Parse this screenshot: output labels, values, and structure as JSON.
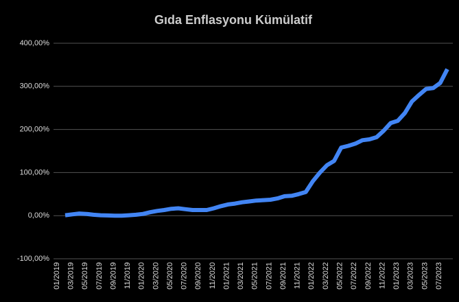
{
  "chart_data": {
    "type": "line",
    "title": "Gıda Enflasyonu Kümülatif",
    "categories": [
      "01/2019",
      null,
      "03/2019",
      null,
      "05/2019",
      null,
      "07/2019",
      null,
      "09/2019",
      null,
      "11/2019",
      null,
      "01/2020",
      null,
      "03/2020",
      null,
      "05/2020",
      null,
      "07/2020",
      null,
      "09/2020",
      null,
      "11/2020",
      null,
      "01/2021",
      null,
      "03/2021",
      null,
      "05/2021",
      null,
      "07/2021",
      null,
      "09/2021",
      null,
      "11/2021",
      null,
      "01/2022",
      null,
      "03/2022",
      null,
      "05/2022",
      null,
      "07/2022",
      null,
      "09/2022",
      null,
      "11/2022",
      null,
      "01/2023",
      null,
      "03/2023",
      null,
      "05/2023",
      null,
      "07/2023"
    ],
    "values": [
      1,
      3,
      5,
      4,
      2,
      1,
      0.5,
      0,
      0,
      1,
      2,
      4,
      8,
      11,
      13,
      16,
      17,
      15,
      13,
      13,
      13,
      17,
      22,
      26,
      28,
      31,
      33,
      35,
      36,
      37,
      40,
      45,
      46,
      50,
      55,
      80,
      100,
      117,
      127,
      158,
      162,
      167,
      175,
      177,
      182,
      197,
      215,
      220,
      238,
      265,
      280,
      294,
      296,
      308,
      340
    ],
    "color": "#4285f4",
    "ylim": [
      -100,
      400
    ],
    "yticks": [
      {
        "value": -100,
        "label": "-100,00%"
      },
      {
        "value": 0,
        "label": "0,00%"
      },
      {
        "value": 100,
        "label": "100,00%"
      },
      {
        "value": 200,
        "label": "200,00%"
      },
      {
        "value": 300,
        "label": "300,00%"
      },
      {
        "value": 400,
        "label": "400,00%"
      }
    ],
    "grid": true
  }
}
